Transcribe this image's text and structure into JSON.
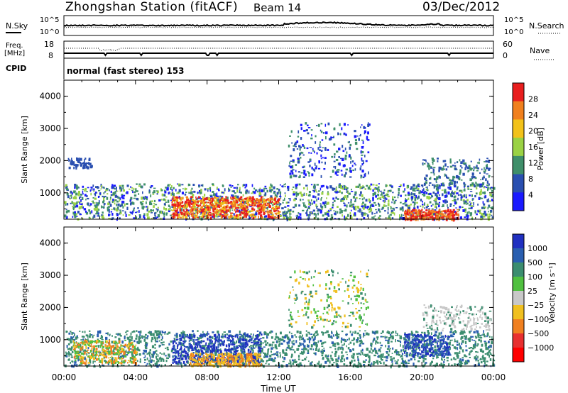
{
  "header": {
    "title": "Zhongshan Station (fitACF)",
    "beam": "Beam 14",
    "date": "03/Dec/2012"
  },
  "status_panels": {
    "nsky_label": "N.Sky",
    "nsearch_label": "N.Search",
    "noise_ticks": [
      "10^5",
      "10^0"
    ],
    "freq_label": "Freq.",
    "freq_unit": "[MHz]",
    "freq_ticks": [
      "18",
      "8"
    ],
    "nave_label": "Nave",
    "nave_ticks": [
      "60",
      "0"
    ],
    "cpid_label": "CPID",
    "cpid_text": "normal (fast stereo) 153"
  },
  "chart_data": [
    {
      "type": "heatmap",
      "name": "power",
      "ylabel": "Slant Range [km]",
      "ylim": [
        180,
        4500
      ],
      "yticks": [
        1000,
        2000,
        3000,
        4000
      ],
      "colorbar_label": "Power [dB]",
      "colorbar_ticks": [
        "4",
        "8",
        "12",
        "16",
        "20",
        "24",
        "28"
      ],
      "colorbar_colors": [
        "#1a1aff",
        "#2a4fb0",
        "#3f8f6a",
        "#9ad244",
        "#f2c21a",
        "#f0801e",
        "#e81e1e"
      ]
    },
    {
      "type": "heatmap",
      "name": "velocity",
      "xlabel": "Time UT",
      "xticks": [
        "00:00",
        "04:00",
        "08:00",
        "12:00",
        "16:00",
        "20:00",
        "00:00"
      ],
      "ylabel": "Slant Range [km]",
      "ylim": [
        180,
        4500
      ],
      "yticks": [
        1000,
        2000,
        3000,
        4000
      ],
      "colorbar_label": "Velocity [m s⁻¹]",
      "colorbar_ticks": [
        "1000",
        "500",
        "100",
        "25",
        "−25",
        "−100",
        "−500",
        "−1000"
      ],
      "colorbar_colors": [
        "#2030c0",
        "#2a5fb0",
        "#3b8d6f",
        "#50c040",
        "#c8c8c8",
        "#f0c020",
        "#f08020",
        "#e83030",
        "#ff0000"
      ]
    }
  ]
}
